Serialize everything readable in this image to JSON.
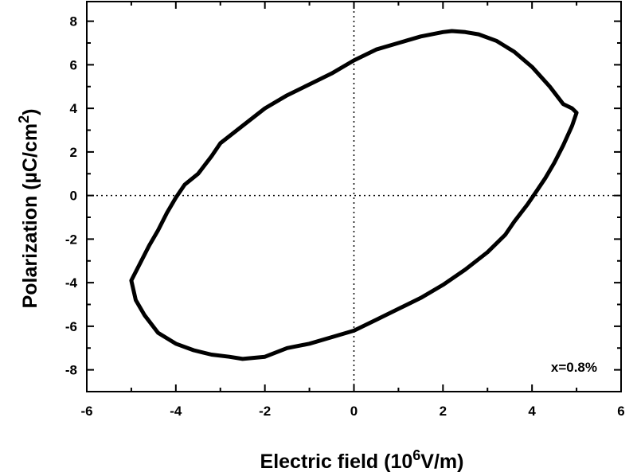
{
  "chart_data": {
    "type": "line",
    "xlabel_main": "Electric field (",
    "xlabel_base": "10",
    "xlabel_sup": "6",
    "xlabel_unit": "V/m)",
    "ylabel_main": "Polarization (",
    "ylabel_mu": "µ",
    "ylabel_unit": "C/cm",
    "ylabel_sup": "2",
    "ylabel_close": ")",
    "xlim": [
      -6,
      6
    ],
    "ylim": [
      -9,
      8.9
    ],
    "x_ticks": [
      -6,
      -4,
      -2,
      0,
      2,
      4,
      6
    ],
    "y_ticks": [
      -8,
      -6,
      -4,
      -2,
      0,
      2,
      4,
      6,
      8
    ],
    "x_tick_labels": [
      "-6",
      "-4",
      "-2",
      "0",
      "2",
      "4",
      "6"
    ],
    "y_tick_labels": [
      "-8",
      "-6",
      "-4",
      "-2",
      "0",
      "2",
      "4",
      "6",
      "8"
    ],
    "zero_lines": "dotted",
    "grid": false,
    "line_color": "#000000",
    "annotation": "x=0.8%",
    "annotation_position": "bottom-right",
    "series": [
      {
        "x": [
          5.0,
          4.9,
          4.7,
          4.5,
          4.3,
          4.1,
          3.9,
          3.6,
          3.4,
          3.0,
          2.5,
          2.0,
          1.5,
          1.0,
          0.5,
          0.0,
          -0.5,
          -1.0,
          -1.5,
          -2.0,
          -2.5,
          -2.8,
          -3.2,
          -3.6,
          -4.0,
          -4.4,
          -4.7,
          -4.9,
          -5.0,
          -4.8,
          -4.6,
          -4.4,
          -4.2,
          -4.0,
          -3.8,
          -3.5,
          -3.2,
          -3.0,
          -2.5,
          -2.0,
          -1.5,
          -1.0,
          -0.5,
          0.0,
          0.5,
          1.0,
          1.5,
          2.0,
          2.2,
          2.5,
          2.8,
          3.2,
          3.6,
          4.0,
          4.4,
          4.7,
          4.9,
          5.0
        ],
        "y": [
          3.8,
          3.2,
          2.3,
          1.5,
          0.8,
          0.2,
          -0.4,
          -1.2,
          -1.8,
          -2.6,
          -3.4,
          -4.1,
          -4.7,
          -5.2,
          -5.7,
          -6.2,
          -6.5,
          -6.8,
          -7.0,
          -7.4,
          -7.5,
          -7.4,
          -7.3,
          -7.1,
          -6.8,
          -6.3,
          -5.5,
          -4.8,
          -3.9,
          -3.1,
          -2.3,
          -1.6,
          -0.8,
          -0.1,
          0.5,
          1.0,
          1.8,
          2.4,
          3.2,
          4.0,
          4.6,
          5.1,
          5.6,
          6.2,
          6.7,
          7.0,
          7.3,
          7.5,
          7.55,
          7.5,
          7.4,
          7.1,
          6.6,
          5.9,
          5.0,
          4.2,
          4.0,
          3.8
        ]
      }
    ]
  }
}
